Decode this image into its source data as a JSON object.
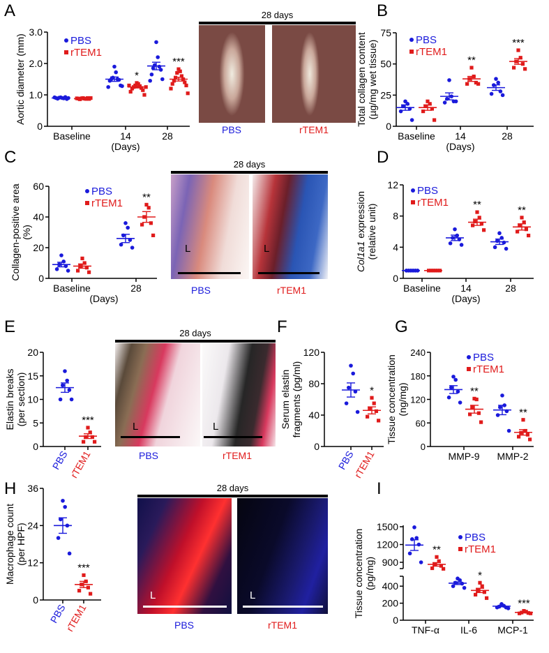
{
  "panel_letters": [
    "A",
    "B",
    "C",
    "D",
    "E",
    "F",
    "G",
    "H",
    "I"
  ],
  "colors": {
    "PBS": "#1a1adb",
    "rTEM1": "#e01b1b",
    "axis": "#000000"
  },
  "legend": [
    "PBS",
    "rTEM1"
  ],
  "images": {
    "A": {
      "title": "28 days",
      "captions": [
        "PBS",
        "rTEM1"
      ]
    },
    "C": {
      "title": "28 days",
      "captions": [
        "PBS",
        "rTEM1"
      ],
      "lumen": "L"
    },
    "E": {
      "title": "28 days",
      "captions": [
        "PBS",
        "rTEM1"
      ],
      "lumen": "L"
    },
    "H": {
      "title": "28 days",
      "captions": [
        "PBS",
        "rTEM1"
      ],
      "lumen": "L"
    }
  },
  "chart_data": [
    {
      "panel": "A",
      "type": "scatter",
      "ylabel": [
        "Aortic diameter (mm)"
      ],
      "xlabel": "(Days)",
      "ylim": [
        0,
        3.0
      ],
      "yticks": [
        "0",
        "1.0",
        "2.0",
        "3.0"
      ],
      "ytick_values": [
        0,
        1,
        2,
        3
      ],
      "categories": [
        "Baseline",
        "14",
        "28"
      ],
      "series": [
        "PBS",
        "rTEM1"
      ],
      "groups": [
        {
          "cat": 0,
          "s": 0,
          "points": [
            0.92,
            0.9,
            0.91,
            0.89,
            0.88,
            0.93,
            0.9,
            0.87,
            0.92,
            0.9
          ],
          "mean": 0.9,
          "sem": 0.01
        },
        {
          "cat": 0,
          "s": 1,
          "points": [
            0.9,
            0.88,
            0.89,
            0.87,
            0.86,
            0.9,
            0.88,
            0.87,
            0.89,
            0.9
          ],
          "mean": 0.88,
          "sem": 0.01
        },
        {
          "cat": 1,
          "s": 0,
          "points": [
            1.9,
            1.72,
            1.55,
            1.5,
            1.5,
            1.48,
            1.45,
            1.3,
            1.25,
            1.28
          ],
          "mean": 1.5,
          "sem": 0.07
        },
        {
          "cat": 1,
          "s": 1,
          "points": [
            1.38,
            1.35,
            1.3,
            1.28,
            1.25,
            1.22,
            1.2,
            1.15,
            1.1,
            1.0,
            1.3,
            1.25
          ],
          "mean": 1.25,
          "sem": 0.03,
          "sig": "*"
        },
        {
          "cat": 2,
          "s": 0,
          "points": [
            2.68,
            2.2,
            1.95,
            1.9,
            1.85,
            1.8,
            1.65,
            1.5,
            1.45
          ],
          "mean": 1.92,
          "sem": 0.12
        },
        {
          "cat": 2,
          "s": 1,
          "points": [
            1.82,
            1.75,
            1.7,
            1.6,
            1.55,
            1.5,
            1.45,
            1.4,
            1.35,
            1.3,
            1.2,
            1.05
          ],
          "mean": 1.5,
          "sem": 0.06,
          "sig": "***"
        }
      ]
    },
    {
      "panel": "B",
      "type": "scatter",
      "ylabel": [
        "Total collagen content",
        "(µg/mg wet tissue)"
      ],
      "xlabel": "(Days)",
      "ylim": [
        0,
        75
      ],
      "yticks": [
        "0",
        "25",
        "50",
        "75"
      ],
      "ytick_values": [
        0,
        25,
        50,
        75
      ],
      "categories": [
        "Baseline",
        "14",
        "28"
      ],
      "series": [
        "PBS",
        "rTEM1"
      ],
      "groups": [
        {
          "cat": 0,
          "s": 0,
          "points": [
            20,
            18,
            16,
            14,
            12,
            5
          ],
          "mean": 15,
          "sem": 2.2
        },
        {
          "cat": 0,
          "s": 1,
          "points": [
            20,
            18,
            16,
            14,
            12,
            5
          ],
          "mean": 15,
          "sem": 2.2
        },
        {
          "cat": 1,
          "s": 0,
          "points": [
            37,
            24,
            22,
            20,
            19,
            20
          ],
          "mean": 24,
          "sem": 2.8
        },
        {
          "cat": 1,
          "s": 1,
          "points": [
            47,
            40,
            38,
            35,
            34,
            34
          ],
          "mean": 38,
          "sem": 2.0,
          "sig": "**"
        },
        {
          "cat": 2,
          "s": 0,
          "points": [
            38,
            35,
            33,
            28,
            26,
            25
          ],
          "mean": 31,
          "sem": 2.2
        },
        {
          "cat": 2,
          "s": 1,
          "points": [
            61,
            55,
            52,
            50,
            47,
            46
          ],
          "mean": 52,
          "sem": 2.3,
          "sig": "***"
        }
      ]
    },
    {
      "panel": "C",
      "type": "scatter",
      "ylabel": [
        "Collagen-positive area",
        "(%)"
      ],
      "xlabel": "(Days)",
      "ylim": [
        0,
        60
      ],
      "yticks": [
        "0",
        "20",
        "40",
        "60"
      ],
      "ytick_values": [
        0,
        20,
        40,
        60
      ],
      "categories": [
        "Baseline",
        "28"
      ],
      "series": [
        "PBS",
        "rTEM1"
      ],
      "groups": [
        {
          "cat": 0,
          "s": 0,
          "points": [
            15,
            11,
            9,
            8,
            6,
            5
          ],
          "mean": 9,
          "sem": 1.5
        },
        {
          "cat": 0,
          "s": 1,
          "points": [
            13,
            10,
            8,
            7,
            5,
            4
          ],
          "mean": 8,
          "sem": 1.4
        },
        {
          "cat": 1,
          "s": 0,
          "points": [
            36,
            33,
            28,
            25,
            22,
            20
          ],
          "mean": 26,
          "sem": 2.7
        },
        {
          "cat": 1,
          "s": 1,
          "points": [
            48,
            46,
            40,
            36,
            35,
            28
          ],
          "mean": 40,
          "sem": 3.5,
          "sig": "**"
        }
      ]
    },
    {
      "panel": "D",
      "type": "scatter",
      "ylabel": [
        "Col1a1 expression",
        "(relative unit)"
      ],
      "xlabel": "(Days)",
      "ylim": [
        0,
        12
      ],
      "yticks": [
        "0",
        "4",
        "8",
        "12"
      ],
      "ytick_values": [
        0,
        4,
        8,
        12
      ],
      "categories": [
        "Baseline",
        "14",
        "28"
      ],
      "series": [
        "PBS",
        "rTEM1"
      ],
      "groups": [
        {
          "cat": 0,
          "s": 0,
          "points": [
            1,
            1,
            1,
            1,
            1,
            1
          ],
          "mean": 1,
          "sem": 0.02
        },
        {
          "cat": 0,
          "s": 1,
          "points": [
            1,
            1,
            1,
            1,
            1,
            1
          ],
          "mean": 1,
          "sem": 0.02
        },
        {
          "cat": 1,
          "s": 0,
          "points": [
            6.3,
            5.5,
            5.2,
            5.0,
            4.5,
            4.3
          ],
          "mean": 5.2,
          "sem": 0.35
        },
        {
          "cat": 1,
          "s": 1,
          "points": [
            8.5,
            7.8,
            7.3,
            7.0,
            6.8,
            6.2
          ],
          "mean": 7.2,
          "sem": 0.4,
          "sig": "**"
        },
        {
          "cat": 2,
          "s": 0,
          "points": [
            5.8,
            5.2,
            4.8,
            4.6,
            4.0,
            3.8
          ],
          "mean": 4.7,
          "sem": 0.35
        },
        {
          "cat": 2,
          "s": 1,
          "points": [
            7.8,
            7.2,
            6.8,
            6.3,
            6.0,
            5.5
          ],
          "mean": 6.6,
          "sem": 0.4,
          "sig": "**"
        }
      ]
    },
    {
      "panel": "E",
      "type": "scatter",
      "ylabel": [
        "Elastin breaks",
        "(per section)"
      ],
      "ylim": [
        0,
        20
      ],
      "yticks": [
        "0",
        "5",
        "10",
        "15",
        "20"
      ],
      "ytick_values": [
        0,
        5,
        10,
        15,
        20
      ],
      "categories": [
        "PBS",
        "rTEM1"
      ],
      "series": [
        "PBS",
        "rTEM1"
      ],
      "groups": [
        {
          "cat": 0,
          "s": 0,
          "points": [
            16,
            14,
            13,
            12,
            10,
            10
          ],
          "mean": 12.5,
          "sem": 1.0
        },
        {
          "cat": 1,
          "s": 1,
          "points": [
            4,
            3,
            2,
            2,
            1,
            1
          ],
          "mean": 2.2,
          "sem": 0.5,
          "sig": "***"
        }
      ]
    },
    {
      "panel": "F",
      "type": "scatter",
      "ylabel": [
        "Serum elastin",
        "fragments (pg/ml)"
      ],
      "ylim": [
        0,
        120
      ],
      "yticks": [
        "0",
        "40",
        "80",
        "120"
      ],
      "ytick_values": [
        0,
        40,
        80,
        120
      ],
      "categories": [
        "PBS",
        "rTEM1"
      ],
      "series": [
        "PBS",
        "rTEM1"
      ],
      "groups": [
        {
          "cat": 0,
          "s": 0,
          "points": [
            103,
            93,
            75,
            70,
            55,
            44
          ],
          "mean": 72,
          "sem": 9
        },
        {
          "cat": 1,
          "s": 1,
          "points": [
            62,
            55,
            48,
            45,
            38,
            33
          ],
          "mean": 46,
          "sem": 4.5,
          "sig": "*"
        }
      ]
    },
    {
      "panel": "G",
      "type": "scatter",
      "ylabel": [
        "Tissue concentration",
        "(ng/mg)"
      ],
      "ylim": [
        0,
        240
      ],
      "yticks": [
        "0",
        "60",
        "120",
        "180",
        "240"
      ],
      "ytick_values": [
        0,
        60,
        120,
        180,
        240
      ],
      "categories": [
        "MMP-9",
        "MMP-2"
      ],
      "series": [
        "PBS",
        "rTEM1"
      ],
      "groups": [
        {
          "cat": 0,
          "s": 0,
          "points": [
            178,
            170,
            150,
            140,
            125,
            112
          ],
          "mean": 145,
          "sem": 10
        },
        {
          "cat": 0,
          "s": 1,
          "points": [
            122,
            120,
            100,
            85,
            82,
            62
          ],
          "mean": 95,
          "sem": 10,
          "sig": "**"
        },
        {
          "cat": 1,
          "s": 0,
          "points": [
            130,
            105,
            100,
            90,
            80,
            40
          ],
          "mean": 93,
          "sem": 12
        },
        {
          "cat": 1,
          "s": 1,
          "points": [
            68,
            40,
            35,
            30,
            25,
            18
          ],
          "mean": 36,
          "sem": 7,
          "sig": "**"
        }
      ]
    },
    {
      "panel": "H",
      "type": "scatter",
      "ylabel": [
        "Macrophage count",
        "(per HPF)"
      ],
      "ylim": [
        0,
        36
      ],
      "yticks": [
        "0",
        "12",
        "24",
        "36"
      ],
      "ytick_values": [
        0,
        12,
        24,
        36
      ],
      "categories": [
        "PBS",
        "rTEM1"
      ],
      "series": [
        "PBS",
        "rTEM1"
      ],
      "groups": [
        {
          "cat": 0,
          "s": 0,
          "points": [
            32,
            30,
            26,
            24,
            20,
            15
          ],
          "mean": 24,
          "sem": 2.5
        },
        {
          "cat": 1,
          "s": 1,
          "points": [
            8,
            6,
            5,
            4,
            3,
            2
          ],
          "mean": 5,
          "sem": 1.0,
          "sig": "***"
        }
      ]
    },
    {
      "panel": "I",
      "type": "scatter",
      "ylabel": [
        "Tissue concentration",
        "(pg/mg)"
      ],
      "axis_break": [
        500,
        750
      ],
      "ylim": [
        0,
        1500
      ],
      "yticks": [
        "0",
        "200",
        "400",
        "900",
        "1200",
        "1500"
      ],
      "ytick_values": [
        0,
        200,
        400,
        900,
        1200,
        1500
      ],
      "categories": [
        "TNF-α",
        "IL-6",
        "MCP-1"
      ],
      "series": [
        "PBS",
        "rTEM1"
      ],
      "groups": [
        {
          "cat": 0,
          "s": 0,
          "points": [
            1490,
            1310,
            1290,
            1200,
            1050,
            900
          ],
          "mean": 1190,
          "sem": 90
        },
        {
          "cat": 0,
          "s": 1,
          "points": [
            990,
            920,
            860,
            840,
            800,
            790
          ],
          "mean": 865,
          "sem": 30,
          "sig": "**"
        },
        {
          "cat": 1,
          "s": 0,
          "points": [
            490,
            470,
            440,
            430,
            400,
            380
          ],
          "mean": 435,
          "sem": 16
        },
        {
          "cat": 1,
          "s": 1,
          "points": [
            440,
            400,
            350,
            330,
            300,
            260
          ],
          "mean": 350,
          "sem": 25,
          "sig": "*"
        },
        {
          "cat": 2,
          "s": 0,
          "points": [
            190,
            170,
            160,
            150,
            150,
            140
          ],
          "mean": 165,
          "sem": 7
        },
        {
          "cat": 2,
          "s": 1,
          "points": [
            110,
            100,
            90,
            85,
            80,
            80
          ],
          "mean": 92,
          "sem": 5,
          "sig": "***"
        }
      ]
    }
  ]
}
